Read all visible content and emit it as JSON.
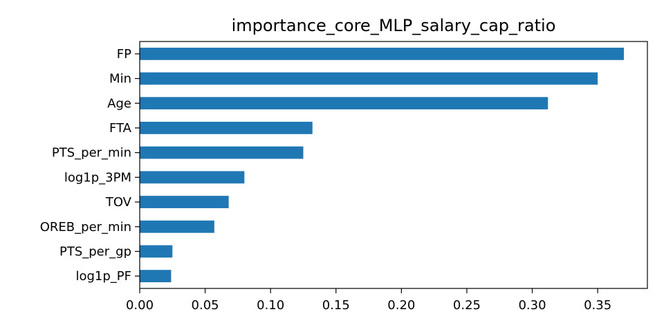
{
  "chart_data": {
    "type": "bar",
    "orientation": "horizontal",
    "title": "importance_core_MLP_salary_cap_ratio",
    "xlabel": "",
    "ylabel": "",
    "categories": [
      "FP",
      "Min",
      "Age",
      "FTA",
      "PTS_per_min",
      "log1p_3PM",
      "TOV",
      "OREB_per_min",
      "PTS_per_gp",
      "log1p_PF"
    ],
    "values": [
      0.37,
      0.35,
      0.312,
      0.132,
      0.125,
      0.08,
      0.068,
      0.057,
      0.025,
      0.024
    ],
    "xlim": [
      0.0,
      0.388
    ],
    "xticks": [
      "0.00",
      "0.05",
      "0.10",
      "0.15",
      "0.20",
      "0.25",
      "0.30",
      "0.35"
    ],
    "grid": false,
    "legend": "none",
    "bar_color": "#1f77b4"
  }
}
